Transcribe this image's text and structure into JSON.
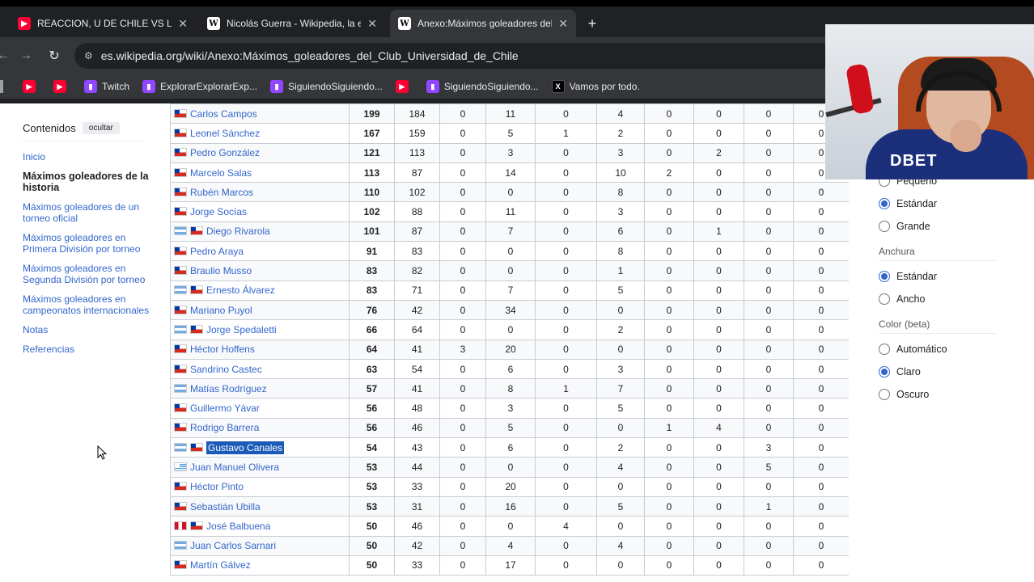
{
  "browser": {
    "tabs": [
      {
        "title": "REACCION, U DE CHILE VS LAN",
        "favicon": "youtube-icon",
        "active": false
      },
      {
        "title": "Nicolás Guerra - Wikipedia, la e",
        "favicon": "wikipedia-icon",
        "active": false
      },
      {
        "title": "Anexo:Máximos goleadores del",
        "favicon": "wikipedia-icon",
        "active": true
      }
    ],
    "new_tab": "+",
    "close_glyph": "✕",
    "url": "es.wikipedia.org/wiki/Anexo:Máximos_goleadores_del_Club_Universidad_de_Chile",
    "bookmarks": [
      {
        "label": "",
        "icon": "youtube-icon"
      },
      {
        "label": "",
        "icon": "youtube-icon"
      },
      {
        "label": "Twitch",
        "icon": "twitch-icon"
      },
      {
        "label": "ExplorarExplorarExp...",
        "icon": "twitch-icon"
      },
      {
        "label": "SiguiendoSiguiendo...",
        "icon": "twitch-icon"
      },
      {
        "label": "",
        "icon": "youtube-icon"
      },
      {
        "label": "SiguiendoSiguiendo...",
        "icon": "twitch-icon"
      },
      {
        "label": "Vamos por todo.",
        "icon": "x-icon"
      }
    ]
  },
  "toc": {
    "title": "Contenidos",
    "hide_label": "ocultar",
    "items": [
      {
        "label": "Inicio",
        "current": false
      },
      {
        "label": "Máximos goleadores de la historia",
        "current": true
      },
      {
        "label": "Máximos goleadores de un torneo oficial",
        "current": false
      },
      {
        "label": "Máximos goleadores en Primera División por torneo",
        "current": false
      },
      {
        "label": "Máximos goleadores en Segunda División por torneo",
        "current": false
      },
      {
        "label": "Máximos goleadores en campeonatos internacionales",
        "current": false
      },
      {
        "label": "Notas",
        "current": false
      },
      {
        "label": "Referencias",
        "current": false
      }
    ]
  },
  "table": {
    "rows": [
      {
        "flags": [
          "cl"
        ],
        "name": "Carlos Campos",
        "highlight": false,
        "cells": [
          "199",
          "184",
          "0",
          "11",
          "0",
          "4",
          "0",
          "0",
          "0",
          "0"
        ]
      },
      {
        "flags": [
          "cl"
        ],
        "name": "Leonel Sánchez",
        "highlight": false,
        "cells": [
          "167",
          "159",
          "0",
          "5",
          "1",
          "2",
          "0",
          "0",
          "0",
          "0"
        ]
      },
      {
        "flags": [
          "cl"
        ],
        "name": "Pedro González",
        "highlight": false,
        "cells": [
          "121",
          "113",
          "0",
          "3",
          "0",
          "3",
          "0",
          "2",
          "0",
          "0"
        ]
      },
      {
        "flags": [
          "cl"
        ],
        "name": "Marcelo Salas",
        "highlight": false,
        "cells": [
          "113",
          "87",
          "0",
          "14",
          "0",
          "10",
          "2",
          "0",
          "0",
          "0"
        ]
      },
      {
        "flags": [
          "cl"
        ],
        "name": "Rubén Marcos",
        "highlight": false,
        "cells": [
          "110",
          "102",
          "0",
          "0",
          "0",
          "8",
          "0",
          "0",
          "0",
          "0"
        ]
      },
      {
        "flags": [
          "cl"
        ],
        "name": "Jorge Socías",
        "highlight": false,
        "cells": [
          "102",
          "88",
          "0",
          "11",
          "0",
          "3",
          "0",
          "0",
          "0",
          "0"
        ]
      },
      {
        "flags": [
          "ar",
          "cl"
        ],
        "name": "Diego Rivarola",
        "highlight": false,
        "cells": [
          "101",
          "87",
          "0",
          "7",
          "0",
          "6",
          "0",
          "1",
          "0",
          "0"
        ]
      },
      {
        "flags": [
          "cl"
        ],
        "name": "Pedro Araya",
        "highlight": false,
        "cells": [
          "91",
          "83",
          "0",
          "0",
          "0",
          "8",
          "0",
          "0",
          "0",
          "0"
        ]
      },
      {
        "flags": [
          "cl"
        ],
        "name": "Braulio Musso",
        "highlight": false,
        "cells": [
          "83",
          "82",
          "0",
          "0",
          "0",
          "1",
          "0",
          "0",
          "0",
          "0"
        ]
      },
      {
        "flags": [
          "ar",
          "cl"
        ],
        "name": "Ernesto Álvarez",
        "highlight": false,
        "cells": [
          "83",
          "71",
          "0",
          "7",
          "0",
          "5",
          "0",
          "0",
          "0",
          "0"
        ]
      },
      {
        "flags": [
          "cl"
        ],
        "name": "Mariano Puyol",
        "highlight": false,
        "cells": [
          "76",
          "42",
          "0",
          "34",
          "0",
          "0",
          "0",
          "0",
          "0",
          "0"
        ]
      },
      {
        "flags": [
          "ar",
          "cl"
        ],
        "name": "Jorge Spedaletti",
        "highlight": false,
        "cells": [
          "66",
          "64",
          "0",
          "0",
          "0",
          "2",
          "0",
          "0",
          "0",
          "0"
        ]
      },
      {
        "flags": [
          "cl"
        ],
        "name": "Héctor Hoffens",
        "highlight": false,
        "cells": [
          "64",
          "41",
          "3",
          "20",
          "0",
          "0",
          "0",
          "0",
          "0",
          "0"
        ]
      },
      {
        "flags": [
          "cl"
        ],
        "name": "Sandrino Castec",
        "highlight": false,
        "cells": [
          "63",
          "54",
          "0",
          "6",
          "0",
          "3",
          "0",
          "0",
          "0",
          "0"
        ]
      },
      {
        "flags": [
          "ar"
        ],
        "name": "Matías Rodríguez",
        "highlight": false,
        "cells": [
          "57",
          "41",
          "0",
          "8",
          "1",
          "7",
          "0",
          "0",
          "0",
          "0"
        ]
      },
      {
        "flags": [
          "cl"
        ],
        "name": "Guillermo Yávar",
        "highlight": false,
        "cells": [
          "56",
          "48",
          "0",
          "3",
          "0",
          "5",
          "0",
          "0",
          "0",
          "0"
        ]
      },
      {
        "flags": [
          "cl"
        ],
        "name": "Rodrigo Barrera",
        "highlight": false,
        "cells": [
          "56",
          "46",
          "0",
          "5",
          "0",
          "0",
          "1",
          "4",
          "0",
          "0"
        ]
      },
      {
        "flags": [
          "ar",
          "cl"
        ],
        "name": "Gustavo Canales",
        "highlight": true,
        "cells": [
          "54",
          "43",
          "0",
          "6",
          "0",
          "2",
          "0",
          "0",
          "3",
          "0"
        ]
      },
      {
        "flags": [
          "uy"
        ],
        "name": "Juan Manuel Olivera",
        "highlight": false,
        "cells": [
          "53",
          "44",
          "0",
          "0",
          "0",
          "4",
          "0",
          "0",
          "5",
          "0"
        ]
      },
      {
        "flags": [
          "cl"
        ],
        "name": "Héctor Pinto",
        "highlight": false,
        "cells": [
          "53",
          "33",
          "0",
          "20",
          "0",
          "0",
          "0",
          "0",
          "0",
          "0"
        ]
      },
      {
        "flags": [
          "cl"
        ],
        "name": "Sebastián Ubilla",
        "highlight": false,
        "cells": [
          "53",
          "31",
          "0",
          "16",
          "0",
          "5",
          "0",
          "0",
          "1",
          "0"
        ]
      },
      {
        "flags": [
          "pe",
          "cl"
        ],
        "name": "José Balbuena",
        "highlight": false,
        "cells": [
          "50",
          "46",
          "0",
          "0",
          "4",
          "0",
          "0",
          "0",
          "0",
          "0"
        ]
      },
      {
        "flags": [
          "ar"
        ],
        "name": "Juan Carlos Sarnari",
        "highlight": false,
        "cells": [
          "50",
          "42",
          "0",
          "4",
          "0",
          "4",
          "0",
          "0",
          "0",
          "0"
        ]
      },
      {
        "flags": [
          "cl"
        ],
        "name": "Martín Gálvez",
        "highlight": false,
        "cells": [
          "50",
          "33",
          "0",
          "17",
          "0",
          "0",
          "0",
          "0",
          "0",
          "0"
        ]
      }
    ]
  },
  "appearance": {
    "text_options": [
      {
        "label": "Pequeño",
        "selected": false
      },
      {
        "label": "Estándar",
        "selected": true
      },
      {
        "label": "Grande",
        "selected": false
      }
    ],
    "width_label": "Anchura",
    "width_options": [
      {
        "label": "Estándar",
        "selected": true
      },
      {
        "label": "Ancho",
        "selected": false
      }
    ],
    "color_label": "Color (beta)",
    "color_options": [
      {
        "label": "Automático",
        "selected": false
      },
      {
        "label": "Claro",
        "selected": true
      },
      {
        "label": "Oscuro",
        "selected": false
      }
    ]
  },
  "webcam": {
    "shirt_text": "DBET"
  },
  "colors": {
    "link": "#3366cc",
    "highlight": "#1a5ab8",
    "chrome_bg": "#202124",
    "toolbar_bg": "#35363a"
  }
}
